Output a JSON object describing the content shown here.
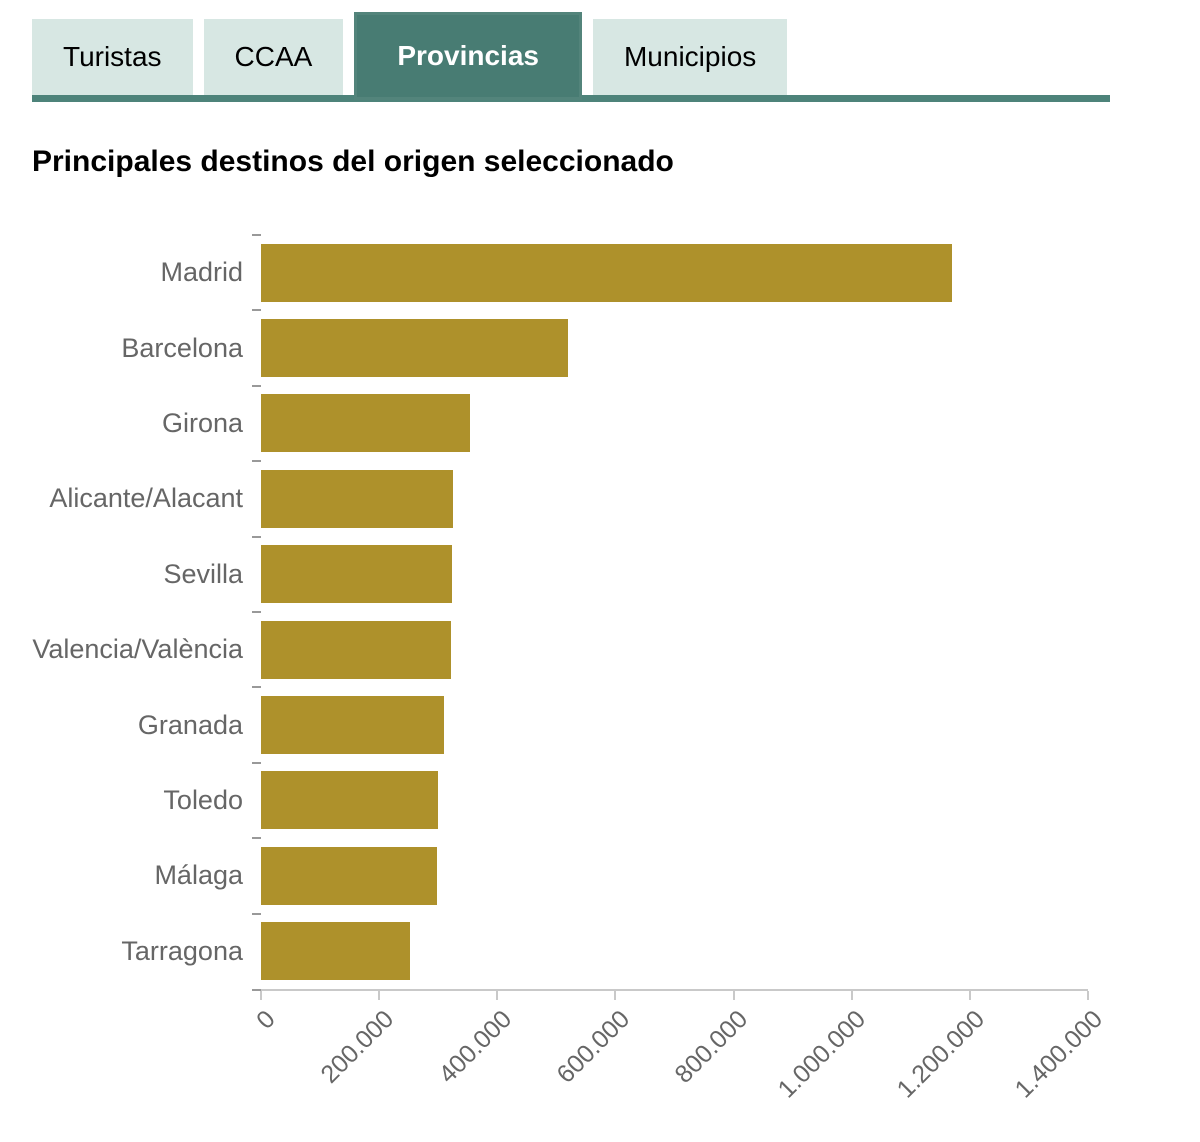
{
  "tabs": {
    "items": [
      {
        "label": "Turistas",
        "active": false
      },
      {
        "label": "CCAA",
        "active": false
      },
      {
        "label": "Provincias",
        "active": true
      },
      {
        "label": "Municipios",
        "active": false
      }
    ]
  },
  "title": "Principales destinos del origen seleccionado",
  "chart_data": {
    "type": "bar",
    "orientation": "horizontal",
    "title": "Principales destinos del origen seleccionado",
    "categories": [
      "Madrid",
      "Barcelona",
      "Girona",
      "Alicante/Alacant",
      "Sevilla",
      "Valencia/València",
      "Granada",
      "Toledo",
      "Málaga",
      "Tarragona"
    ],
    "values": [
      1169000,
      519000,
      354000,
      325000,
      323000,
      322000,
      310000,
      300000,
      298000,
      252000
    ],
    "xlabel": "",
    "ylabel": "",
    "xlim": [
      0,
      1400000
    ],
    "x_tick_values": [
      0,
      200000,
      400000,
      600000,
      800000,
      1000000,
      1200000,
      1400000
    ],
    "x_tick_labels": [
      "0",
      "200.000",
      "400.000",
      "600.000",
      "800.000",
      "1.000.000",
      "1.200.000",
      "1.400.000"
    ],
    "grid": false,
    "legend": "none",
    "bar_color": "#ae912b",
    "label_color": "#666666",
    "axis_color": "#c9c9c9"
  },
  "colors": {
    "active_tab_bg": "#487c73",
    "active_tab_text": "#ffffff",
    "inactive_tab_bg": "#d7e7e3",
    "inactive_tab_text": "#000000",
    "underline": "#4d837a"
  }
}
